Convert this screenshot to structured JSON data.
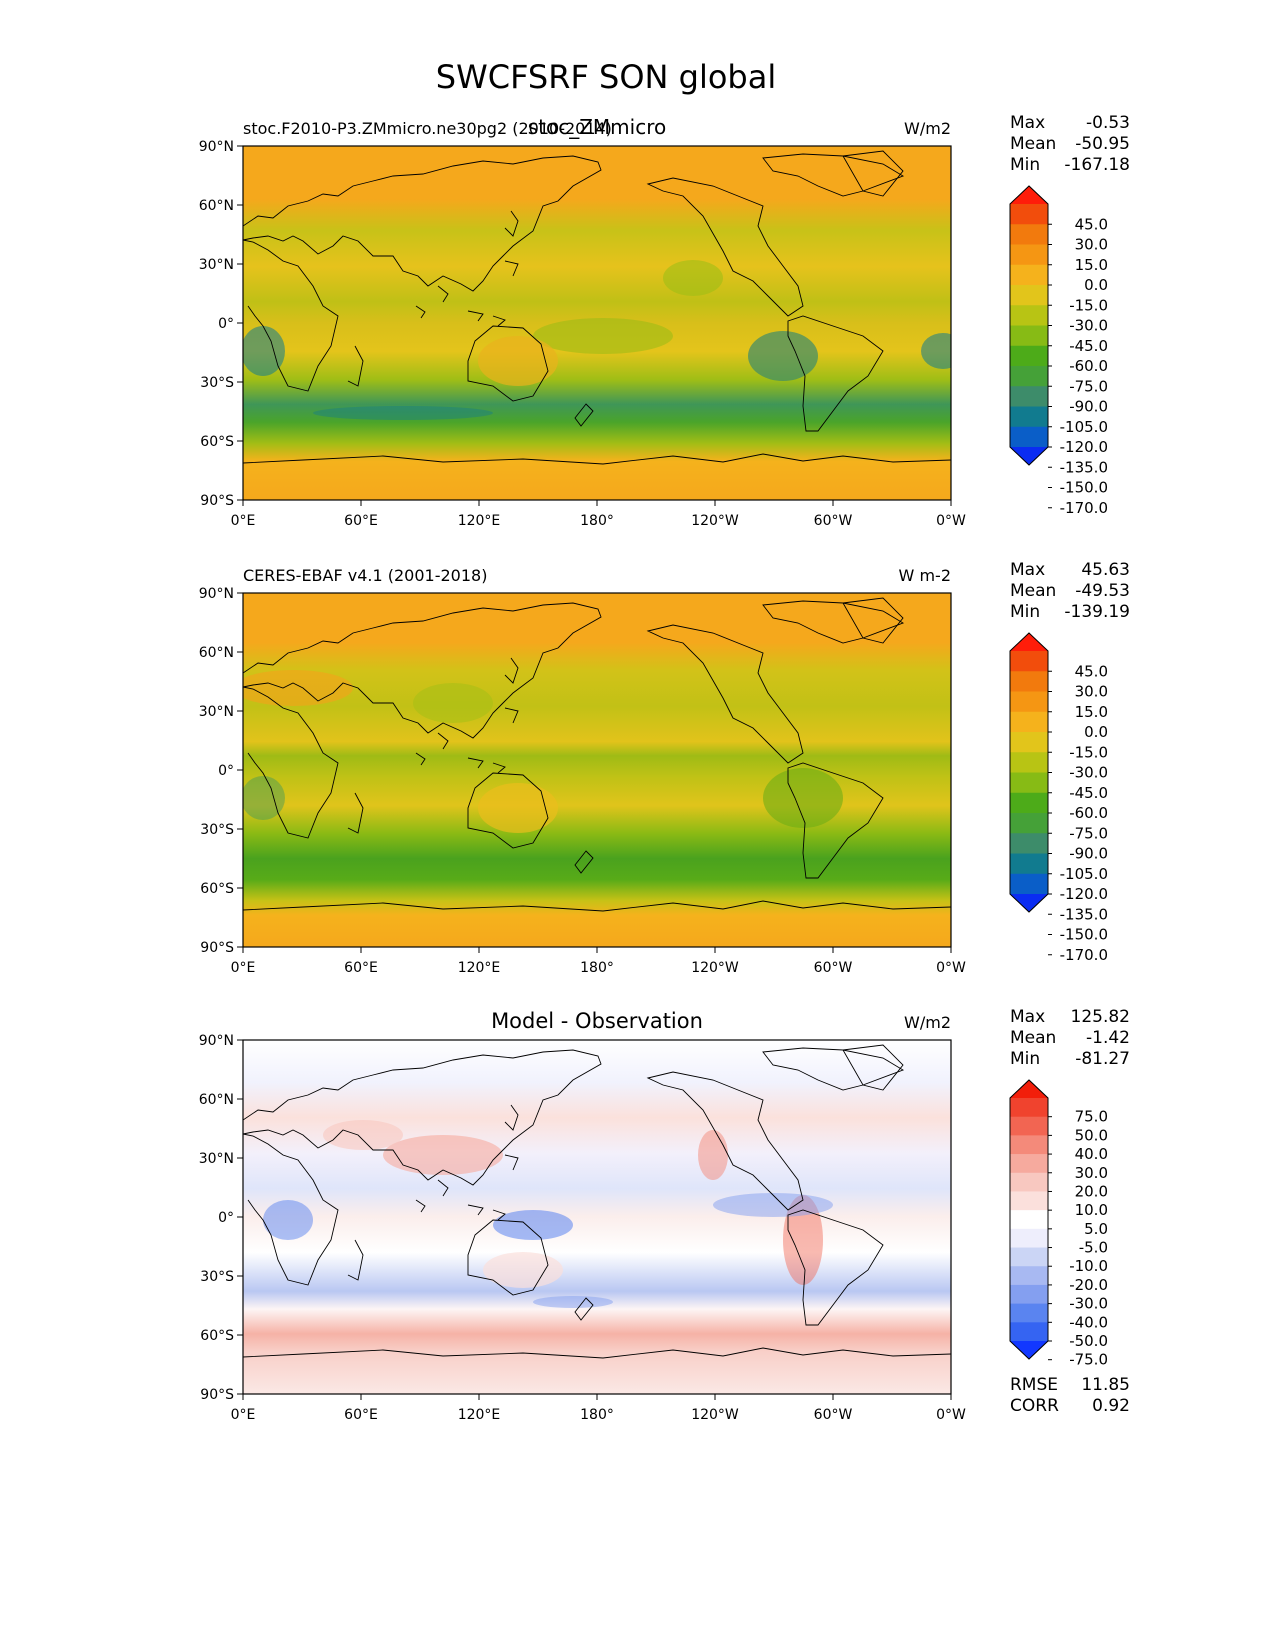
{
  "figure_title": "SWCFSRF SON global",
  "lon_ticks": [
    "0°E",
    "60°E",
    "120°E",
    "180°",
    "120°W",
    "60°W",
    "0°W"
  ],
  "lat_ticks": [
    "90°N",
    "60°N",
    "30°N",
    "0°",
    "30°S",
    "60°S",
    "90°S"
  ],
  "colors": {
    "mean_scale": [
      "#0a2cf2",
      "#0a5ec8",
      "#117b8f",
      "#3d8c6a",
      "#45a138",
      "#4dab19",
      "#87bb15",
      "#b8c414",
      "#e2c51b",
      "#f5b21c",
      "#f59613",
      "#f27a0d",
      "#f24d0c",
      "#ff1d0a"
    ],
    "diff_scale": [
      "#1238ff",
      "#3564f2",
      "#5a84f0",
      "#849ff0",
      "#a8b9f2",
      "#cbd5f5",
      "#eeeefc",
      "#ffffff",
      "#fbe0dc",
      "#f8c8c0",
      "#f6aa9e",
      "#f48a7a",
      "#f26552",
      "#f0432e",
      "#f21e0a"
    ],
    "coastline": "#000000"
  },
  "panels": [
    {
      "left_label": "stoc.F2010-P3.ZMmicro.ne30pg2 (2010-2014)",
      "center_label": "stoc_ZMmicro",
      "units": "W/m2",
      "stats": [
        {
          "label": "Max",
          "value": "-0.53"
        },
        {
          "label": "Mean",
          "value": "-50.95"
        },
        {
          "label": "Min",
          "value": "-167.18"
        }
      ],
      "colorbar_ticks": [
        "45.0",
        "30.0",
        "15.0",
        "0.0",
        "-15.0",
        "-30.0",
        "-45.0",
        "-60.0",
        "-75.0",
        "-90.0",
        "-105.0",
        "-120.0",
        "-135.0",
        "-150.0",
        "-170.0"
      ]
    },
    {
      "left_label": "CERES-EBAF v4.1 (2001-2018)",
      "center_label": "",
      "units": "W m-2",
      "stats": [
        {
          "label": "Max",
          "value": "45.63"
        },
        {
          "label": "Mean",
          "value": "-49.53"
        },
        {
          "label": "Min",
          "value": "-139.19"
        }
      ],
      "colorbar_ticks": [
        "45.0",
        "30.0",
        "15.0",
        "0.0",
        "-15.0",
        "-30.0",
        "-45.0",
        "-60.0",
        "-75.0",
        "-90.0",
        "-105.0",
        "-120.0",
        "-135.0",
        "-150.0",
        "-170.0"
      ]
    },
    {
      "left_label": "",
      "center_label": "Model - Observation",
      "units": "W/m2",
      "stats": [
        {
          "label": "Max",
          "value": "125.82"
        },
        {
          "label": "Mean",
          "value": "-1.42"
        },
        {
          "label": "Min",
          "value": "-81.27"
        }
      ],
      "colorbar_ticks": [
        "75.0",
        "50.0",
        "40.0",
        "30.0",
        "20.0",
        "10.0",
        "5.0",
        "-5.0",
        "-10.0",
        "-20.0",
        "-30.0",
        "-40.0",
        "-50.0",
        "-75.0"
      ],
      "extra_stats": [
        {
          "label": "RMSE",
          "value": "11.85"
        },
        {
          "label": "CORR",
          "value": "0.92"
        }
      ]
    }
  ]
}
